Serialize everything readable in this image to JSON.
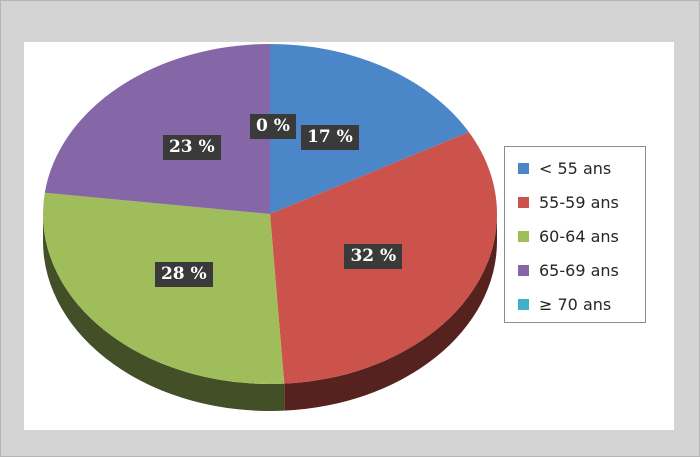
{
  "chart_data": {
    "type": "pie",
    "title": "",
    "slices": [
      {
        "label": "< 55 ans",
        "value": 17,
        "display": "17 %",
        "color": "#4a86c8"
      },
      {
        "label": "55-59 ans",
        "value": 32,
        "display": "32 %",
        "color": "#cc524c"
      },
      {
        "label": "60-64 ans",
        "value": 28,
        "display": "28 %",
        "color": "#9fbd5a"
      },
      {
        "label": "65-69 ans",
        "value": 23,
        "display": "23 %",
        "color": "#8567a8"
      },
      {
        "label": "≥ 70 ans",
        "value": 0,
        "display": "0 %",
        "color": "#3fb0c8"
      }
    ],
    "legend_position": "right",
    "style": "3d"
  }
}
